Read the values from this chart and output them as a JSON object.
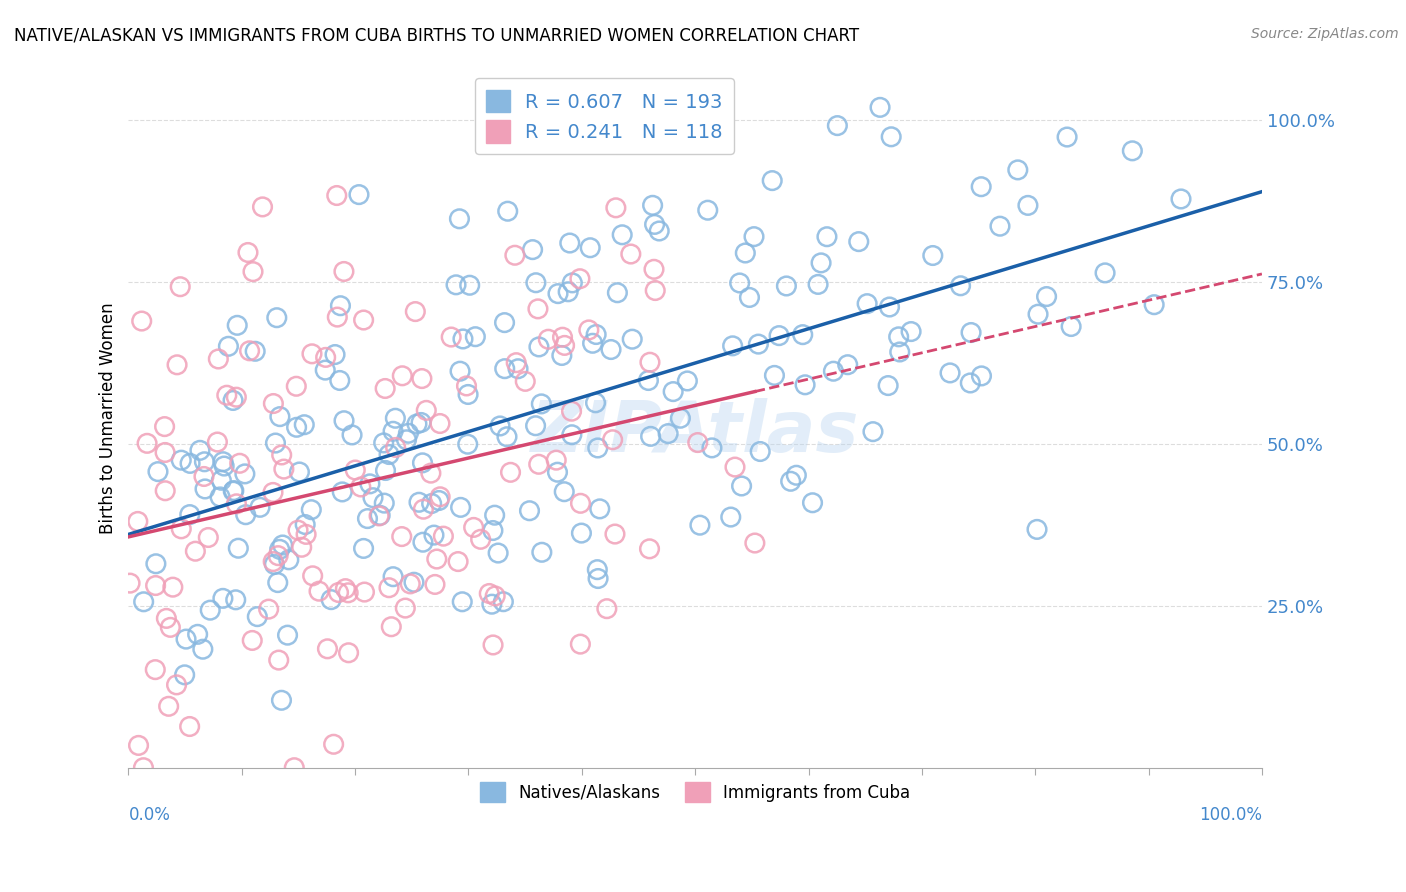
{
  "title": "NATIVE/ALASKAN VS IMMIGRANTS FROM CUBA BIRTHS TO UNMARRIED WOMEN CORRELATION CHART",
  "source": "Source: ZipAtlas.com",
  "ylabel": "Births to Unmarried Women",
  "ytick_labels": [
    "25.0%",
    "50.0%",
    "75.0%",
    "100.0%"
  ],
  "ytick_vals": [
    0.25,
    0.5,
    0.75,
    1.0
  ],
  "blue_R": 0.607,
  "blue_N": 193,
  "pink_R": 0.241,
  "pink_N": 118,
  "blue_color": "#89b8e0",
  "pink_color": "#f0a0b8",
  "blue_line_color": "#1a5fa8",
  "pink_line_color": "#d44870",
  "tick_label_color": "#4488cc",
  "legend_blue_label": "Natives/Alaskans",
  "legend_pink_label": "Immigrants from Cuba",
  "watermark": "ZIPAtlas",
  "seed": 12345
}
